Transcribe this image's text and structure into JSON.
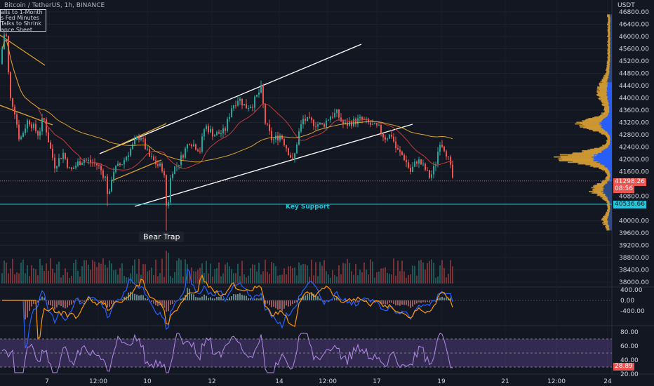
{
  "header": {
    "symbol": "Bitcoin / TetherUS, 1h, BINANCE",
    "currency": "USDT"
  },
  "news_box": {
    "lines": [
      "alls to 1-Month",
      "s Fed Minutes",
      "Talks to Shrink",
      "ance Sheet"
    ]
  },
  "annotations": {
    "key_support": "Key Support",
    "bear_trap": "Bear Trap"
  },
  "price_tags": {
    "current_price": "41298.26",
    "countdown": "08:56",
    "support_price": "40536.66",
    "rsi_value": "28.89"
  },
  "colors": {
    "up": "#26a69a",
    "down": "#ef5350",
    "support_line": "#26c6da",
    "rsi_band": "#7e57c2",
    "volume_profile_blue": "#2962ff",
    "volume_profile_orange": "#d9a034"
  },
  "chart_data": [
    {
      "type": "candlestick",
      "title": "Bitcoin / TetherUS, 1h, BINANCE",
      "y_axis_unit": "USDT",
      "x_tick_labels": [
        "7",
        "12:00",
        "10",
        "12",
        "14",
        "12:00",
        "17",
        "19",
        "21",
        "12:00",
        "24"
      ],
      "y_tick_labels": [
        "46800.00",
        "46400.00",
        "46000.00",
        "45600.00",
        "45200.00",
        "44800.00",
        "44400.00",
        "44000.00",
        "43600.00",
        "43200.00",
        "42800.00",
        "42400.00",
        "42000.00",
        "41600.00",
        "40800.00",
        "40000.00",
        "39600.00",
        "39200.00",
        "38800.00",
        "38400.00",
        "38000.00"
      ],
      "ylim": [
        38000,
        46900
      ],
      "key_points": [
        {
          "x": "7",
          "close": 43100
        },
        {
          "x": "8",
          "close": 41800
        },
        {
          "x": "12:00",
          "close": 41500
        },
        {
          "x": "10",
          "close": 42300
        },
        {
          "x": "10",
          "close": 41100
        },
        {
          "x": "10",
          "low": 39680
        },
        {
          "x": "11",
          "close": 42900
        },
        {
          "x": "12",
          "close": 43500
        },
        {
          "x": "13",
          "close": 44350
        },
        {
          "x": "14",
          "close": 42300
        },
        {
          "x": "14",
          "close": 41900
        },
        {
          "x": "15",
          "close": 43400
        },
        {
          "x": "16",
          "close": 43100
        },
        {
          "x": "17",
          "close": 42600
        },
        {
          "x": "18",
          "close": 41900
        },
        {
          "x": "19",
          "close": 41298.26
        }
      ],
      "support_level": 40536.66,
      "current_price": 41298.26
    },
    {
      "type": "line",
      "title": "MACD",
      "y_tick_labels": [
        "400.00",
        "0.00",
        "-400.00"
      ],
      "ylim": [
        -600,
        500
      ]
    },
    {
      "type": "line",
      "title": "RSI",
      "y_tick_labels": [
        "80.00",
        "60.00",
        "40.00",
        "20.00"
      ],
      "ylim": [
        15,
        85
      ],
      "band": [
        30,
        70
      ],
      "current": 28.89
    }
  ]
}
